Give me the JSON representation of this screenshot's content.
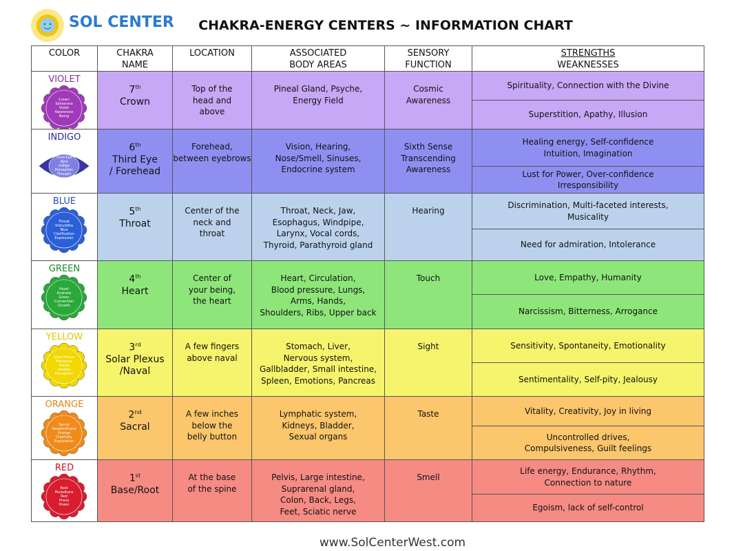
{
  "header": {
    "brand": "SOL CENTER",
    "title": "CHAKRA-ENERGY CENTERS ~ INFORMATION CHART"
  },
  "table": {
    "columns": [
      "COLOR",
      "CHAKRA\nNAME",
      "LOCATION",
      "ASSOCIATED\nBODY AREAS",
      "SENSORY\nFUNCTION"
    ],
    "strengths_header": "STRENGTHS",
    "weaknesses_header": "WEAKNESSES",
    "rows": [
      {
        "color": "VIOLET",
        "mandala": [
          "Crown",
          "Sahasrara",
          "Violet",
          "Awareness",
          "Being"
        ],
        "ordinal": "7",
        "suffix": "th",
        "name": "Crown",
        "location": "Top of the\nhead and\nabove",
        "body": "Pineal Gland, Psyche,\nEnergy Field",
        "sense": "Cosmic\nAwareness",
        "strengths": "Spirituality,  Connection with the Divine",
        "weaknesses": "Superstition, Apathy, Illusion"
      },
      {
        "color": "INDIGO",
        "mandala": [
          "Third Eye",
          "Ajna",
          "Indigo",
          "Perception",
          "Thought"
        ],
        "ordinal": "6",
        "suffix": "th",
        "name": "Third Eye\n/ Forehead",
        "location": "Forehead,\nbetween eyebrows",
        "body": "Vision, Hearing,\nNose/Smell, Sinuses,\nEndocrine system",
        "sense": "Sixth Sense\nTranscending\nAwareness",
        "strengths": "Healing energy, Self-confidence\nIntuition, Imagination",
        "weaknesses": "Lust for Power, Over-confidence\nIrresponsibility"
      },
      {
        "color": "BLUE",
        "mandala": [
          "Throat",
          "Vishuddha",
          "Blue",
          "Clarification",
          "Expression"
        ],
        "ordinal": "5",
        "suffix": "th",
        "name": "Throat",
        "location": "Center    of the\nneck and\nthroat",
        "body": "Throat, Neck, Jaw,\nEsophagus, Windpipe,\nLarynx, Vocal cords,\nThyroid, Parathyroid gland",
        "sense": "Hearing",
        "strengths": "Discrimination, Multi-faceted interests,\nMusicality",
        "weaknesses": "Need for admiration, Intolerance"
      },
      {
        "color": "GREEN",
        "mandala": [
          "Heart",
          "Anahata",
          "Green",
          "Connection",
          "Growth"
        ],
        "ordinal": "4",
        "suffix": "th",
        "name": "Heart",
        "location": "Center of\nyour being,\nthe heart",
        "body": "Heart, Circulation,\nBlood pressure, Lungs,\nArms, Hands,\nShoulders, Ribs, Upper back",
        "sense": "Touch",
        "strengths": "Love, Empathy, Humanity",
        "weaknesses": "Narcissism, Bitterness, Arrogance"
      },
      {
        "color": "YELLOW",
        "mandala": [
          "Solar Plexus",
          "Manipura",
          "Yellow",
          "Intellect",
          "Perception"
        ],
        "ordinal": "3",
        "suffix": "rd",
        "name": "Solar Plexus\n/Naval",
        "location": "A few fingers\nabove naval",
        "body": "Stomach, Liver,\nNervous system,\nGallbladder, Small intestine,\nSpleen, Emotions, Pancreas",
        "sense": "Sight",
        "strengths": "Sensitivity, Spontaneity, Emotionality",
        "weaknesses": "Sentimentality, Self-pity, Jealousy"
      },
      {
        "color": "ORANGE",
        "mandala": [
          "Sacral",
          "Swadhisthana",
          "Orange",
          "Creativity",
          "Exploration"
        ],
        "ordinal": "2",
        "suffix": "nd",
        "name": "Sacral",
        "location": "A few inches\nbelow the\nbelly button",
        "body": "Lymphatic system,\nKidneys, Bladder,\nSexual organs",
        "sense": "Taste",
        "strengths": "Vitality, Creativity, Joy in living",
        "weaknesses": "Uncontrolled drives,\nCompulsiveness, Guilt feelings"
      },
      {
        "color": "RED",
        "mandala": [
          "Root",
          "Muladhara",
          "Red",
          "Prana",
          "Power"
        ],
        "ordinal": "1",
        "suffix": "st",
        "name": "Base/Root",
        "location": "At the base\nof the spine",
        "body": "Pelvis, Large intestine,\nSuprarenal gland,\nColon, Back, Legs,\nFeet, Sciatic nerve",
        "sense": "Smell",
        "strengths": "Life energy, Endurance, Rhythm,\nConnection to nature",
        "weaknesses": "Egoism, lack of self-control"
      }
    ]
  },
  "footer": "www.SolCenterWest.com"
}
